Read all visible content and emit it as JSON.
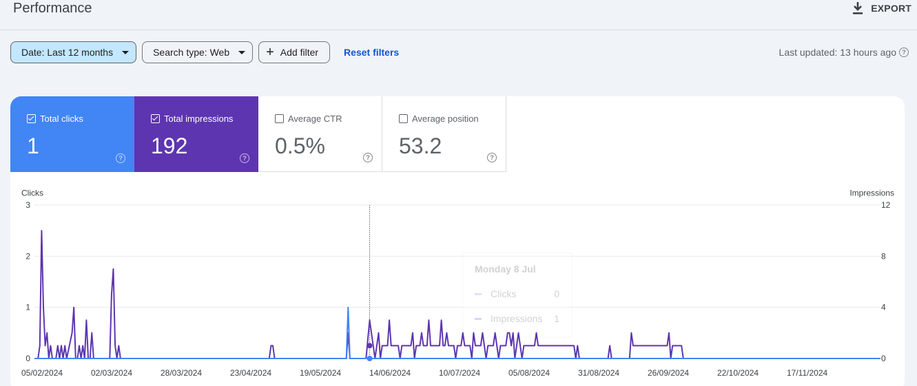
{
  "header": {
    "title": "Performance",
    "export_label": "EXPORT"
  },
  "filters": {
    "date": "Date: Last 12 months",
    "search_type": "Search type: Web",
    "add_filter": "Add filter",
    "reset": "Reset filters"
  },
  "last_updated": "Last updated: 13 hours ago",
  "metrics": [
    {
      "label": "Total clicks",
      "value": "1",
      "checked": true
    },
    {
      "label": "Total impressions",
      "value": "192",
      "checked": true
    },
    {
      "label": "Average CTR",
      "value": "0.5%",
      "checked": false
    },
    {
      "label": "Average position",
      "value": "53.2",
      "checked": false
    }
  ],
  "tooltip": {
    "date": "Monday 8 Jul",
    "rows": [
      {
        "label": "Clicks",
        "value": "0"
      },
      {
        "label": "Impressions",
        "value": "1"
      }
    ]
  },
  "colors": {
    "clicks": "#4285f4",
    "impressions": "#5e35b1"
  },
  "chart_data": {
    "type": "line",
    "left_axis_label": "Clicks",
    "right_axis_label": "Impressions",
    "left_ylim": [
      0,
      3
    ],
    "right_ylim": [
      0,
      12
    ],
    "left_ticks": [
      "0",
      "1",
      "2",
      "3"
    ],
    "right_ticks": [
      "0",
      "4",
      "8",
      "12"
    ],
    "x_tick_labels": [
      "05/02/2024",
      "02/03/2024",
      "28/03/2024",
      "23/04/2024",
      "19/05/2024",
      "14/06/2024",
      "10/07/2024",
      "05/08/2024",
      "31/08/2024",
      "26/09/2024",
      "22/10/2024",
      "17/11/2024"
    ],
    "series": [
      {
        "name": "Clicks",
        "axis": "left",
        "points": [
          [
            0,
            0
          ],
          [
            174,
            0
          ],
          [
            175,
            1
          ],
          [
            176,
            0
          ],
          [
            472,
            0
          ]
        ]
      },
      {
        "name": "Impressions",
        "axis": "right",
        "points": [
          [
            0,
            0
          ],
          [
            2,
            0
          ],
          [
            3,
            1
          ],
          [
            4,
            10
          ],
          [
            5,
            4
          ],
          [
            6,
            1
          ],
          [
            7,
            2
          ],
          [
            8,
            0
          ],
          [
            9,
            1
          ],
          [
            10,
            0
          ],
          [
            11,
            0
          ],
          [
            12,
            0
          ],
          [
            13,
            1
          ],
          [
            14,
            0
          ],
          [
            15,
            1
          ],
          [
            16,
            0
          ],
          [
            17,
            1
          ],
          [
            18,
            0
          ],
          [
            21,
            2
          ],
          [
            22,
            4
          ],
          [
            23,
            0
          ],
          [
            24,
            0
          ],
          [
            25,
            1
          ],
          [
            26,
            0
          ],
          [
            27,
            1
          ],
          [
            28,
            0
          ],
          [
            29,
            3
          ],
          [
            30,
            0
          ],
          [
            31,
            0
          ],
          [
            32,
            2
          ],
          [
            33,
            0
          ],
          [
            42,
            0
          ],
          [
            43,
            5
          ],
          [
            44,
            7
          ],
          [
            45,
            1
          ],
          [
            46,
            0
          ],
          [
            47,
            1
          ],
          [
            48,
            0
          ],
          [
            131,
            0
          ],
          [
            132,
            1
          ],
          [
            133,
            1
          ],
          [
            134,
            0
          ],
          [
            174,
            0
          ],
          [
            175,
            2
          ],
          [
            176,
            0
          ],
          [
            185,
            0
          ],
          [
            187,
            3
          ],
          [
            189,
            1
          ],
          [
            190,
            0
          ],
          [
            192,
            2
          ],
          [
            193,
            0
          ],
          [
            194,
            1
          ],
          [
            195,
            1
          ],
          [
            196,
            1
          ],
          [
            197,
            1
          ],
          [
            198,
            3
          ],
          [
            199,
            1
          ],
          [
            200,
            1
          ],
          [
            201,
            1
          ],
          [
            202,
            1
          ],
          [
            203,
            1
          ],
          [
            204,
            0
          ],
          [
            205,
            1
          ],
          [
            206,
            1
          ],
          [
            207,
            1
          ],
          [
            208,
            1
          ],
          [
            209,
            1
          ],
          [
            210,
            1
          ],
          [
            211,
            2
          ],
          [
            212,
            0
          ],
          [
            213,
            1
          ],
          [
            214,
            1
          ],
          [
            215,
            1
          ],
          [
            216,
            2
          ],
          [
            217,
            1
          ],
          [
            218,
            1
          ],
          [
            219,
            1
          ],
          [
            220,
            3
          ],
          [
            221,
            1
          ],
          [
            222,
            1
          ],
          [
            223,
            1
          ],
          [
            224,
            1
          ],
          [
            225,
            1
          ],
          [
            226,
            1
          ],
          [
            227,
            3
          ],
          [
            228,
            1
          ],
          [
            229,
            1
          ],
          [
            230,
            2
          ],
          [
            231,
            1
          ],
          [
            232,
            1
          ],
          [
            233,
            1
          ],
          [
            234,
            1
          ],
          [
            235,
            0
          ],
          [
            236,
            1
          ],
          [
            237,
            1
          ],
          [
            238,
            1
          ],
          [
            239,
            2
          ],
          [
            240,
            1
          ],
          [
            241,
            1
          ],
          [
            242,
            1
          ],
          [
            243,
            1
          ],
          [
            244,
            0
          ],
          [
            245,
            2
          ],
          [
            246,
            1
          ],
          [
            247,
            1
          ],
          [
            248,
            1
          ],
          [
            249,
            1
          ],
          [
            250,
            2
          ],
          [
            251,
            1
          ],
          [
            252,
            0
          ],
          [
            253,
            1
          ],
          [
            254,
            1
          ],
          [
            255,
            1
          ],
          [
            256,
            1
          ],
          [
            257,
            2
          ],
          [
            258,
            1
          ],
          [
            259,
            0
          ],
          [
            260,
            1
          ],
          [
            261,
            1
          ],
          [
            262,
            1
          ],
          [
            263,
            1
          ],
          [
            264,
            2
          ],
          [
            265,
            2
          ],
          [
            266,
            1
          ],
          [
            267,
            2
          ],
          [
            268,
            0
          ],
          [
            269,
            1
          ],
          [
            270,
            2
          ],
          [
            271,
            1
          ],
          [
            272,
            0
          ],
          [
            273,
            1
          ],
          [
            274,
            1
          ],
          [
            275,
            1
          ],
          [
            276,
            1
          ],
          [
            277,
            1
          ],
          [
            278,
            1
          ],
          [
            279,
            1
          ],
          [
            280,
            2
          ],
          [
            281,
            1
          ],
          [
            282,
            1
          ],
          [
            283,
            1
          ],
          [
            284,
            1
          ],
          [
            285,
            1
          ],
          [
            286,
            1
          ],
          [
            287,
            1
          ],
          [
            288,
            1
          ],
          [
            289,
            1
          ],
          [
            290,
            1
          ],
          [
            291,
            1
          ],
          [
            292,
            1
          ],
          [
            293,
            1
          ],
          [
            294,
            1
          ],
          [
            295,
            1
          ],
          [
            296,
            1
          ],
          [
            297,
            1
          ],
          [
            298,
            1
          ],
          [
            299,
            1
          ],
          [
            300,
            1
          ],
          [
            301,
            1
          ],
          [
            302,
            0
          ],
          [
            303,
            1
          ],
          [
            304,
            0
          ],
          [
            320,
            0
          ],
          [
            321,
            1
          ],
          [
            322,
            0
          ],
          [
            332,
            0
          ],
          [
            333,
            2
          ],
          [
            334,
            1
          ],
          [
            335,
            1
          ],
          [
            336,
            1
          ],
          [
            337,
            1
          ],
          [
            338,
            1
          ],
          [
            339,
            1
          ],
          [
            340,
            1
          ],
          [
            341,
            1
          ],
          [
            342,
            1
          ],
          [
            343,
            1
          ],
          [
            344,
            1
          ],
          [
            345,
            1
          ],
          [
            346,
            1
          ],
          [
            347,
            1
          ],
          [
            348,
            1
          ],
          [
            349,
            1
          ],
          [
            350,
            1
          ],
          [
            351,
            1
          ],
          [
            352,
            1
          ],
          [
            353,
            1
          ],
          [
            354,
            2
          ],
          [
            355,
            0
          ],
          [
            356,
            1
          ],
          [
            357,
            1
          ],
          [
            358,
            1
          ],
          [
            359,
            1
          ],
          [
            360,
            1
          ],
          [
            361,
            1
          ],
          [
            362,
            0
          ],
          [
            472,
            0
          ]
        ]
      }
    ],
    "hover_index": 187,
    "hover_values": {
      "clicks": 0,
      "impressions": 1
    }
  }
}
